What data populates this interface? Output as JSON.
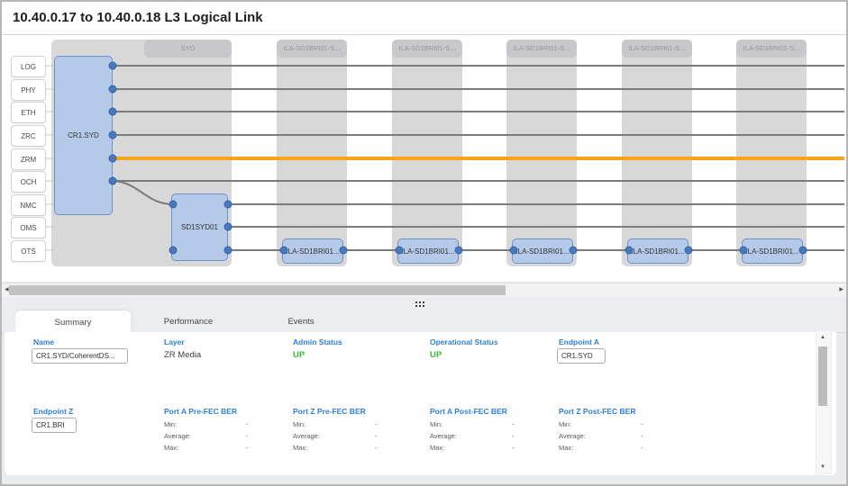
{
  "title": "10.40.0.17 to 10.40.0.18 L3 Logical Link",
  "colors": {
    "highlight_orange": "#f7a61b",
    "link_gray": "#7b7b7b",
    "node_fill": "#b5cae9",
    "node_border": "#6e92ca",
    "status_green": "#3cba3c",
    "label_blue": "#2f7fd6"
  },
  "topology": {
    "layer_labels": [
      "LOG",
      "PHY",
      "ETH",
      "ZRC",
      "ZRM",
      "OCH",
      "NMC",
      "OMS",
      "OTS"
    ],
    "highlighted_layer": "ZRM",
    "columns": [
      "SYD",
      "ILA-SD1BRI01-S...",
      "ILA-SD1BRI01-S...",
      "ILA-SD1BRI01-S...",
      "ILA-SD1BRI01-S...",
      "ILA-SD1BRI01-S..."
    ],
    "nodes": {
      "cr1_syd": "CR1.SYD",
      "sd1_syd01": "SD1SYD01",
      "ila_labels": [
        "ILA-SD1BRI01...",
        "ILA-SD1BRI01...",
        "ILA-SD1BRI01...",
        "ILA-SD1BRI01...",
        "ILA-SD1BRI01..."
      ]
    }
  },
  "icons": {
    "left": "◀",
    "right": "▶",
    "up": "▲",
    "down": "▼"
  },
  "tabs": [
    {
      "label": "Summary",
      "active": true
    },
    {
      "label": "Performance",
      "active": false
    },
    {
      "label": "Events",
      "active": false
    }
  ],
  "summary": {
    "name_label": "Name",
    "name_value": "CR1.SYD/CoherentDS...",
    "layer_label": "Layer",
    "layer_value": "ZR Media",
    "admin_label": "Admin Status",
    "admin_value": "UP",
    "oper_label": "Operational Status",
    "oper_value": "UP",
    "endpoint_a_label": "Endpoint A",
    "endpoint_a_value": "CR1.SYD",
    "endpoint_z_label": "Endpoint Z",
    "endpoint_z_value": "CR1.BRI",
    "ber_groups": [
      "Port A Pre-FEC BER",
      "Port Z Pre-FEC BER",
      "Port A Post-FEC BER",
      "Port Z Post-FEC BER"
    ],
    "stat_labels": {
      "min": "Min:",
      "avg": "Average:",
      "max": "Max:"
    },
    "stat_value": "-"
  }
}
